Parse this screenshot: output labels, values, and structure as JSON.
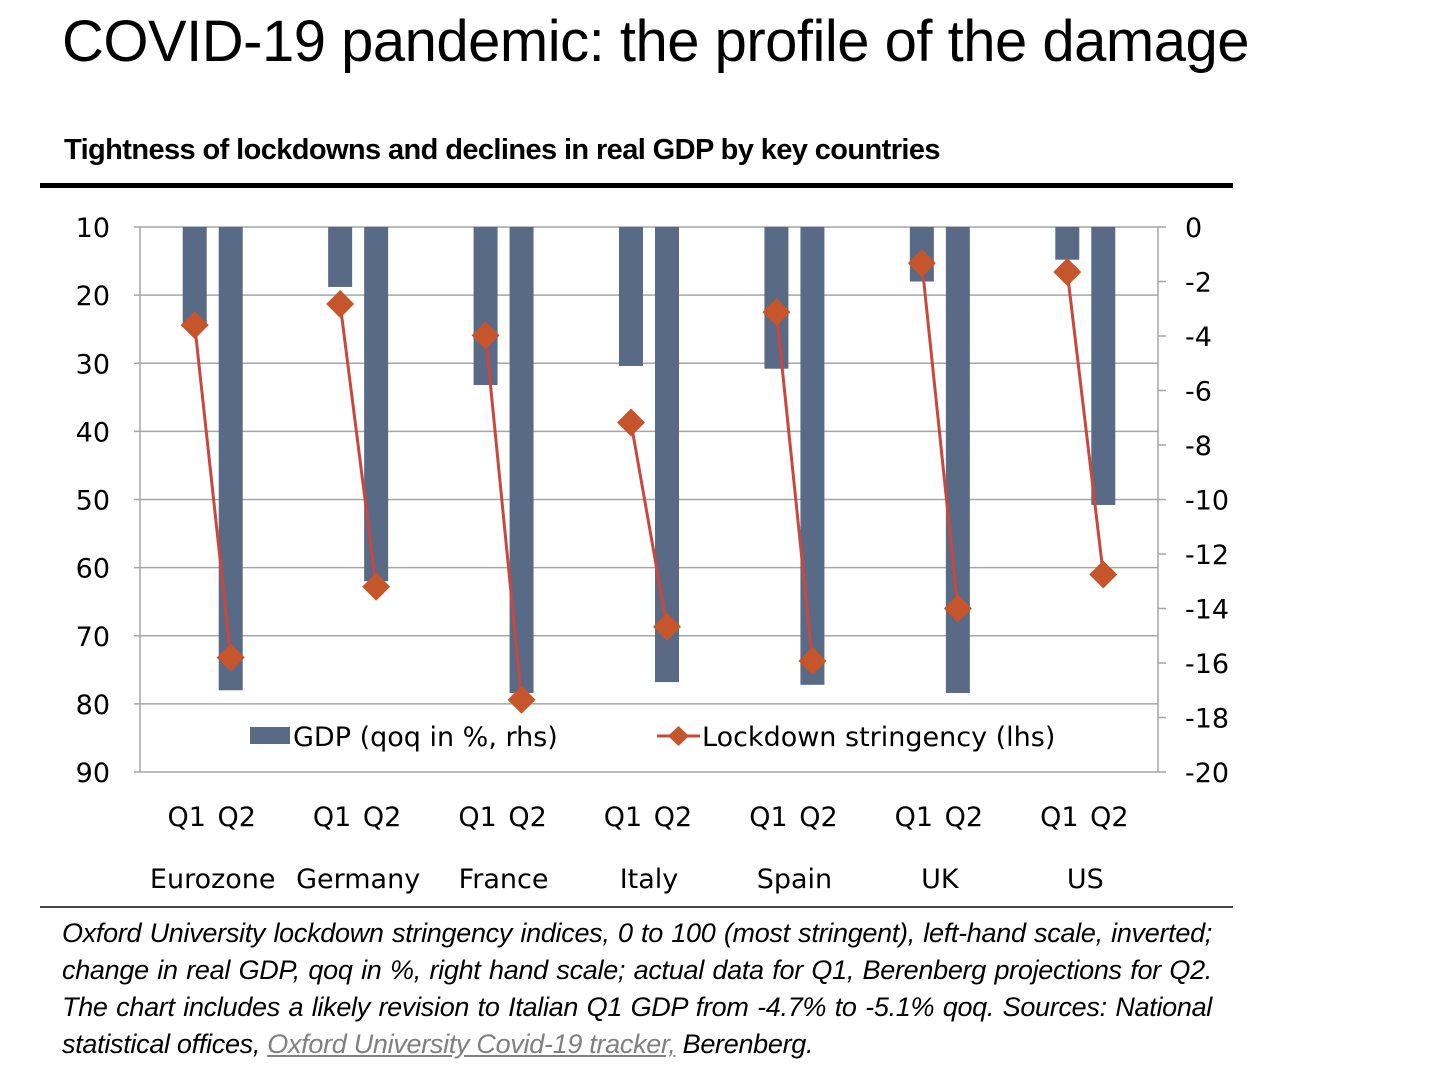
{
  "header": {
    "title": "COVID-19 pandemic: the profile of the damage",
    "subtitle": "Tightness of lockdowns and declines in real GDP by key countries"
  },
  "footnote": {
    "text_before_link": "Oxford University lockdown stringency indices, 0 to 100 (most stringent), left-hand scale, inverted; change in real GDP, qoq in %, right hand scale; actual data for Q1, Berenberg projections for Q2. The chart includes a likely revision to Italian Q1 GDP from -4.7% to -5.1% qoq. Sources: National statistical offices, ",
    "link_text": "Oxford University Covid-19 tracker,",
    "text_after_link": " Berenberg."
  },
  "colors": {
    "bar": "#596a86",
    "line": "#c8483e",
    "marker": "#c6552b",
    "grid": "#a6a6a6",
    "axis": "#a6a6a6"
  },
  "chart_data": {
    "type": "bar+line",
    "title": "Tightness of lockdowns and declines in real GDP by key countries",
    "groups": [
      "Eurozone",
      "Germany",
      "France",
      "Italy",
      "Spain",
      "UK",
      "US"
    ],
    "subcategories": [
      "Q1",
      "Q2"
    ],
    "left_axis": {
      "label": "Lockdown stringency (lhs)",
      "range": [
        10,
        90
      ],
      "inverted": true,
      "ticks": [
        10,
        20,
        30,
        40,
        50,
        60,
        70,
        80,
        90
      ]
    },
    "right_axis": {
      "label": "GDP (qoq in %, rhs)",
      "range": [
        0,
        -20
      ],
      "ticks": [
        0,
        -2,
        -4,
        -6,
        -8,
        -10,
        -12,
        -14,
        -16,
        -18,
        -20
      ]
    },
    "grid": true,
    "series": [
      {
        "name": "GDP (qoq in %, rhs)",
        "type": "bar",
        "axis": "right",
        "values": [
          [
            -3.6,
            -17.0
          ],
          [
            -2.2,
            -13.0
          ],
          [
            -5.8,
            -17.1
          ],
          [
            -5.1,
            -16.7
          ],
          [
            -5.2,
            -16.8
          ],
          [
            -2.0,
            -17.1
          ],
          [
            -1.2,
            -10.2
          ]
        ]
      },
      {
        "name": "Lockdown stringency (lhs)",
        "type": "line",
        "axis": "left",
        "values": [
          [
            24.4,
            73.2
          ],
          [
            21.3,
            62.8
          ],
          [
            25.9,
            79.4
          ],
          [
            38.7,
            68.7
          ],
          [
            22.5,
            73.7
          ],
          [
            15.3,
            66.0
          ],
          [
            16.6,
            61.0
          ]
        ]
      }
    ],
    "legend": {
      "placement": "bottom-inside",
      "entries": [
        "GDP (qoq in %, rhs)",
        "Lockdown stringency (lhs)"
      ]
    }
  }
}
